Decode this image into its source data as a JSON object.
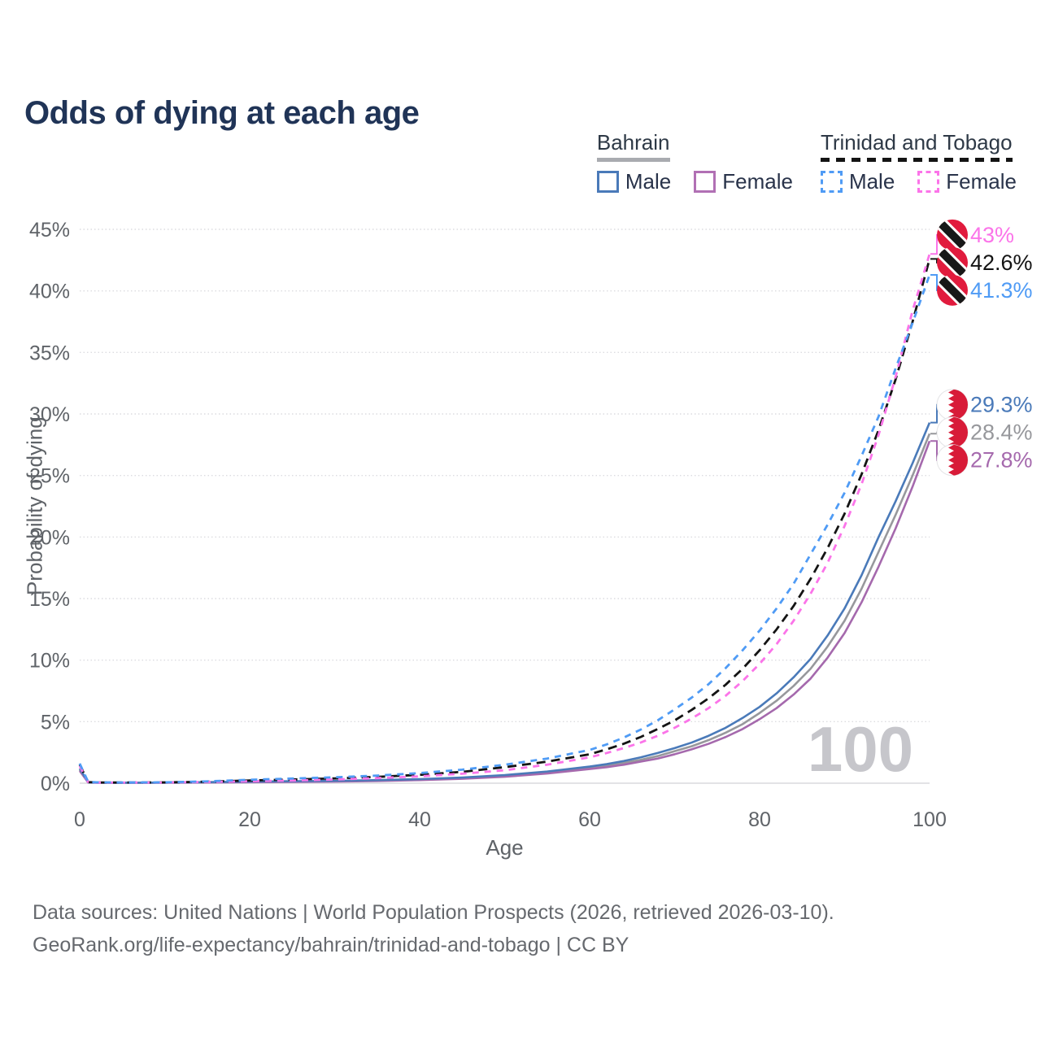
{
  "title": "Odds of dying at each age",
  "watermark": "100",
  "legend": {
    "groups": [
      {
        "country": "Bahrain",
        "underline_style": "solid",
        "underline_color": "#a9abb0",
        "items": [
          {
            "label": "Male",
            "color": "#4a7ab9",
            "style": "solid"
          },
          {
            "label": "Female",
            "color": "#b170b4",
            "style": "solid"
          }
        ]
      },
      {
        "country": "Trinidad and Tobago",
        "underline_style": "dashed",
        "underline_color": "#141414",
        "items": [
          {
            "label": "Male",
            "color": "#4f9bf5",
            "style": "dashed"
          },
          {
            "label": "Female",
            "color": "#fb74e9",
            "style": "dashed"
          }
        ]
      }
    ]
  },
  "axes": {
    "x": {
      "title": "Age",
      "ticks": [
        0,
        20,
        40,
        60,
        80,
        100
      ],
      "range": [
        0,
        100
      ]
    },
    "y": {
      "title": "Probability of dying",
      "ticks": [
        0,
        5,
        10,
        15,
        20,
        25,
        30,
        35,
        40,
        45
      ],
      "unit": "%",
      "range": [
        0,
        45
      ]
    }
  },
  "chart_data": {
    "type": "line",
    "title": "Odds of dying at each age",
    "xlabel": "Age",
    "ylabel": "Probability of dying",
    "xlim": [
      0,
      100
    ],
    "ylim": [
      0,
      45
    ],
    "grid": true,
    "legend_position": "top-right",
    "x_ages": [
      0,
      1,
      2,
      5,
      10,
      15,
      20,
      25,
      30,
      35,
      40,
      45,
      50,
      55,
      60,
      62,
      64,
      66,
      68,
      70,
      72,
      74,
      76,
      78,
      80,
      82,
      84,
      86,
      88,
      90,
      92,
      94,
      96,
      98,
      100
    ],
    "series": [
      {
        "id": "bahrain-both",
        "country": "Bahrain",
        "sex": "both",
        "name": "Bahrain",
        "color": "#97989c",
        "dash": "none",
        "end_label": "28.4%",
        "values": [
          1.1,
          0.065,
          0.045,
          0.04,
          0.045,
          0.07,
          0.1,
          0.13,
          0.16,
          0.21,
          0.29,
          0.41,
          0.59,
          0.87,
          1.25,
          1.45,
          1.65,
          1.9,
          2.2,
          2.6,
          3.0,
          3.5,
          4.1,
          4.8,
          5.7,
          6.7,
          7.9,
          9.3,
          11.1,
          13.2,
          15.8,
          18.8,
          21.8,
          25.0,
          28.4
        ]
      },
      {
        "id": "bahrain-female",
        "country": "Bahrain",
        "sex": "female",
        "name": "Bahrain Female",
        "color": "#a569ad",
        "dash": "none",
        "end_label": "27.8%",
        "values": [
          1.0,
          0.06,
          0.04,
          0.035,
          0.04,
          0.06,
          0.08,
          0.1,
          0.13,
          0.18,
          0.25,
          0.36,
          0.52,
          0.79,
          1.15,
          1.3,
          1.5,
          1.75,
          2.0,
          2.35,
          2.75,
          3.2,
          3.75,
          4.4,
          5.2,
          6.1,
          7.2,
          8.5,
          10.2,
          12.2,
          14.7,
          17.6,
          20.7,
          24.1,
          27.8
        ]
      },
      {
        "id": "bahrain-male",
        "country": "Bahrain",
        "sex": "male",
        "name": "Bahrain Male",
        "color": "#4a7ab9",
        "dash": "none",
        "end_label": "29.3%",
        "values": [
          1.2,
          0.07,
          0.05,
          0.04,
          0.05,
          0.09,
          0.13,
          0.16,
          0.19,
          0.25,
          0.33,
          0.46,
          0.66,
          0.95,
          1.35,
          1.55,
          1.8,
          2.1,
          2.45,
          2.85,
          3.3,
          3.85,
          4.5,
          5.3,
          6.2,
          7.3,
          8.6,
          10.1,
          12.0,
          14.2,
          16.9,
          20.0,
          22.9,
          26.0,
          29.3
        ]
      },
      {
        "id": "tt-both",
        "country": "Trinidad and Tobago",
        "sex": "both",
        "name": "Trinidad and Tobago",
        "color": "#141414",
        "dash": "11 7",
        "end_label": "42.6%",
        "values": [
          1.5,
          0.09,
          0.06,
          0.055,
          0.065,
          0.12,
          0.22,
          0.3,
          0.39,
          0.51,
          0.68,
          0.92,
          1.3,
          1.75,
          2.35,
          2.75,
          3.2,
          3.75,
          4.4,
          5.1,
          5.95,
          6.9,
          8.0,
          9.3,
          10.8,
          12.5,
          14.4,
          16.6,
          19.1,
          21.9,
          25.1,
          28.7,
          32.8,
          37.5,
          42.6
        ]
      },
      {
        "id": "tt-female",
        "country": "Trinidad and Tobago",
        "sex": "female",
        "name": "Trinidad and Tobago Female",
        "color": "#fb74e9",
        "dash": "8 7",
        "end_label": "43%",
        "values": [
          1.4,
          0.085,
          0.055,
          0.05,
          0.06,
          0.1,
          0.16,
          0.22,
          0.3,
          0.41,
          0.56,
          0.77,
          1.05,
          1.5,
          2.1,
          2.45,
          2.85,
          3.3,
          3.85,
          4.5,
          5.25,
          6.1,
          7.1,
          8.3,
          9.7,
          11.3,
          13.2,
          15.4,
          17.9,
          20.9,
          24.3,
          28.3,
          33.0,
          38.4,
          43.0
        ]
      },
      {
        "id": "tt-male",
        "country": "Trinidad and Tobago",
        "sex": "male",
        "name": "Trinidad and Tobago Male",
        "color": "#4f9bf5",
        "dash": "8 7",
        "end_label": "41.3%",
        "values": [
          1.6,
          0.1,
          0.07,
          0.06,
          0.07,
          0.15,
          0.28,
          0.38,
          0.48,
          0.62,
          0.82,
          1.1,
          1.5,
          2.0,
          2.7,
          3.15,
          3.7,
          4.35,
          5.1,
          6.0,
          6.95,
          8.05,
          9.35,
          10.8,
          12.4,
          14.2,
          16.2,
          18.6,
          21.0,
          23.6,
          26.6,
          29.8,
          33.7,
          37.4,
          41.3
        ]
      }
    ]
  },
  "footer": {
    "line1": "Data sources: United Nations | World Population Prospects (2026, retrieved 2026-03-10).",
    "line2": "GeoRank.org/life-expectancy/bahrain/trinidad-and-tobago | CC BY"
  },
  "colors": {
    "title": "#203457",
    "axis_text": "#5f6368",
    "grid": "#dcdce0",
    "axis_line": "#e3e3e6",
    "watermark": "#c6c6cb",
    "footer_text": "#66696e",
    "legend_text": "#29334a",
    "bahrain_flag_red": "#d81b38",
    "tt_flag_red": "#e11b3d",
    "flag_band_black": "#181818"
  }
}
